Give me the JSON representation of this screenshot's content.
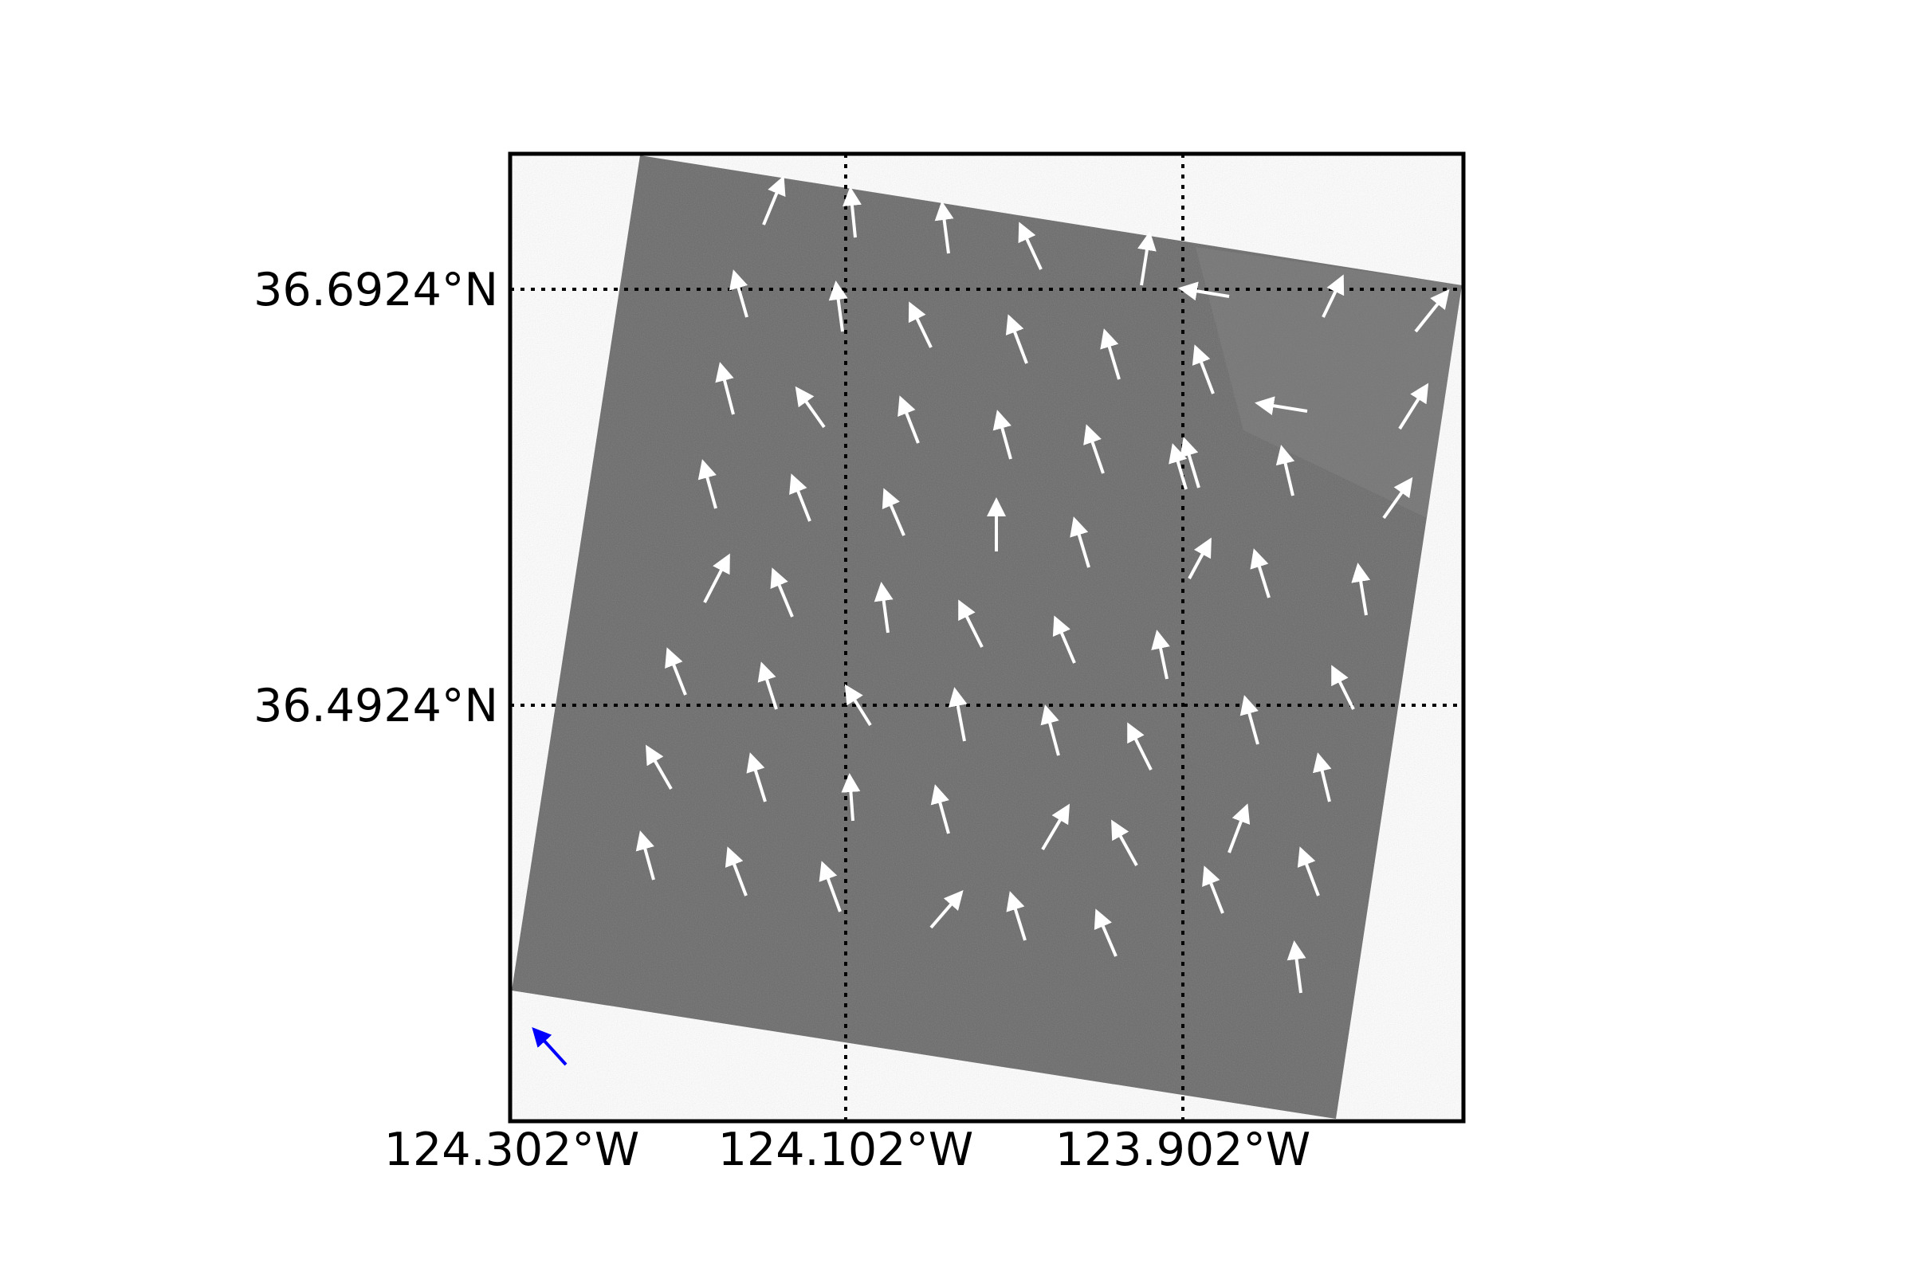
{
  "map": {
    "lon_labels": [
      "124.302°W",
      "124.102°W",
      "123.902°W"
    ],
    "lat_labels": [
      "36.6924°N",
      "36.4924°N"
    ],
    "gridlines": {
      "style": "dotted",
      "color": "#000000"
    },
    "scene": {
      "kind": "SAR backscatter image",
      "color": "#6a6a6a"
    },
    "wind_vectors": {
      "color": "#ffffff",
      "description": "white arrows over scene, pointing roughly north-northwest"
    },
    "reference_arrow": {
      "color": "#0000ff",
      "direction": "northwest"
    }
  }
}
